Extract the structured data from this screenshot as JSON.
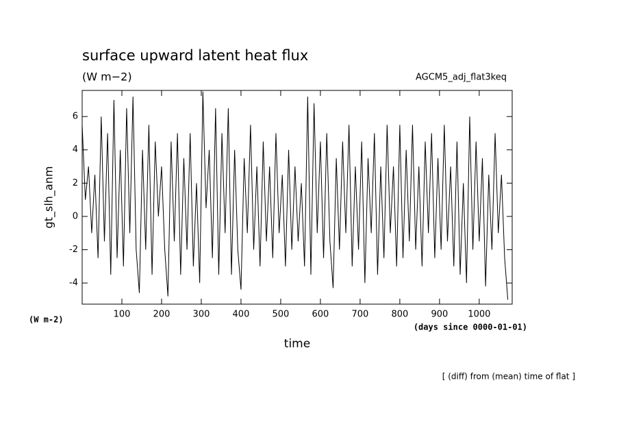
{
  "chart_data": {
    "type": "line",
    "title": "surface upward latent heat flux",
    "subtitle": "(W m−2)",
    "experiment": "AGCM5_adj_flat3keq",
    "y_label": "gt_slh_anm",
    "y_unit": "(W m-2)",
    "x_label": "time",
    "x_unit": "(days since 0000-01-01)",
    "note": "[ (diff) from (mean) time of flat ]",
    "x": [
      0,
      8,
      16,
      24,
      32,
      40,
      48,
      56,
      64,
      72,
      80,
      88,
      96,
      104,
      112,
      120,
      128,
      136,
      144,
      152,
      160,
      168,
      176,
      184,
      192,
      200,
      208,
      216,
      224,
      232,
      240,
      248,
      256,
      264,
      272,
      280,
      288,
      296,
      304,
      312,
      320,
      328,
      336,
      344,
      352,
      360,
      368,
      376,
      384,
      392,
      400,
      408,
      416,
      424,
      432,
      440,
      448,
      456,
      464,
      472,
      480,
      488,
      496,
      504,
      512,
      520,
      528,
      536,
      544,
      552,
      560,
      568,
      576,
      584,
      592,
      600,
      608,
      616,
      624,
      632,
      640,
      648,
      656,
      664,
      672,
      680,
      688,
      696,
      704,
      712,
      720,
      728,
      736,
      744,
      752,
      760,
      768,
      776,
      784,
      792,
      800,
      808,
      816,
      824,
      832,
      840,
      848,
      856,
      864,
      872,
      880,
      888,
      896,
      904,
      912,
      920,
      928,
      936,
      944,
      952,
      960,
      968,
      976,
      984,
      992,
      1000,
      1008,
      1016,
      1024,
      1032,
      1040,
      1048,
      1056,
      1064,
      1072
    ],
    "series": [
      {
        "name": "gt_slh_anm",
        "color": "#000000",
        "values": [
          5.5,
          1,
          3,
          -1,
          2.5,
          -2.5,
          6,
          -1.5,
          5,
          -3.5,
          7,
          -2.5,
          4,
          -3,
          6.5,
          -1,
          7.2,
          -2,
          -4.6,
          4,
          -2,
          5.5,
          -3.5,
          4.5,
          0,
          3,
          -2,
          -4.8,
          4.5,
          -1.5,
          5,
          -3.5,
          3.5,
          -2,
          5,
          -3,
          2,
          -4,
          7.5,
          0.5,
          4,
          -2.5,
          6.5,
          -3.5,
          5,
          -1,
          6.5,
          -3.5,
          4,
          -2,
          -4.4,
          3.5,
          -1,
          5.5,
          -2,
          3,
          -3,
          4.5,
          -1.5,
          3,
          -2.5,
          5,
          -1,
          2.5,
          -3,
          4,
          -2,
          3,
          -1.5,
          2,
          -3,
          7.2,
          -3.5,
          6.8,
          -1,
          4.5,
          -2.5,
          5,
          -1.5,
          -4.3,
          3.5,
          -2,
          4.5,
          -1,
          5.5,
          -3,
          3,
          -2,
          4.5,
          -4,
          3.5,
          -1,
          5,
          -3.5,
          3,
          -2.5,
          5.5,
          -1,
          3,
          -3,
          5.5,
          -2.5,
          4,
          -1.5,
          5.5,
          -2,
          3,
          -3,
          4.5,
          -1,
          5,
          -2.5,
          3.5,
          -2,
          5.5,
          -1.5,
          3,
          -3,
          4.5,
          -3.5,
          2,
          -4,
          6,
          -2,
          4.5,
          -1.5,
          3.5,
          -4.2,
          2.5,
          -2,
          5,
          -1,
          2.5,
          -2.5,
          -5
        ]
      }
    ],
    "xlim": [
      0,
      1083
    ],
    "ylim": [
      -5.27,
      7.57
    ],
    "xticks": [
      100,
      200,
      300,
      400,
      500,
      600,
      700,
      800,
      900,
      1000
    ],
    "yticks": [
      -4,
      -2,
      0,
      2,
      4,
      6
    ]
  }
}
